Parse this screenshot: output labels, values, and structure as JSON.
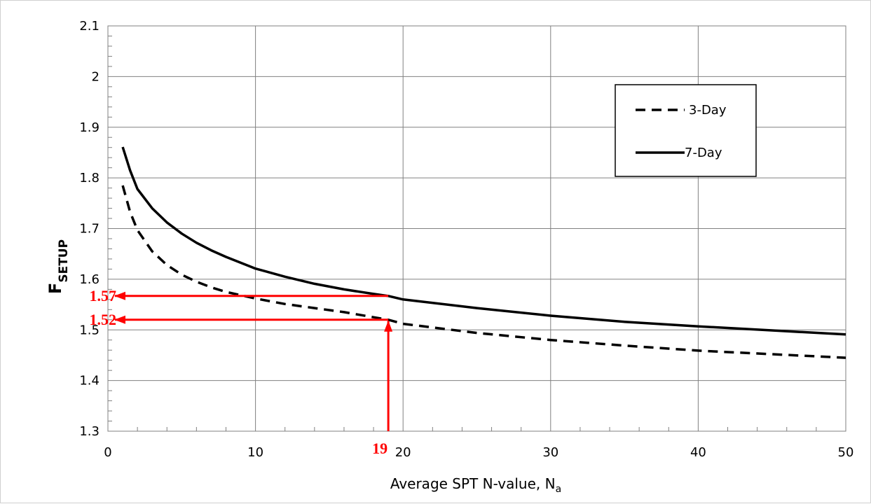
{
  "chart_data": {
    "type": "line",
    "title": "",
    "xlabel": {
      "main": "Average SPT N-value, N",
      "sub": "a"
    },
    "ylabel": {
      "main": "F",
      "sub": "SETUP"
    },
    "xlim": [
      0,
      50
    ],
    "ylim": [
      1.3,
      2.1
    ],
    "x_ticks": [
      "0",
      "10",
      "20",
      "30",
      "40",
      "50"
    ],
    "y_ticks": [
      "1.3",
      "1.4",
      "1.5",
      "1.6",
      "1.7",
      "1.8",
      "1.9",
      "2",
      "2.1"
    ],
    "grid": true,
    "legend": {
      "placement": "top-right"
    },
    "series": [
      {
        "name": "3-Day",
        "style": "dashed",
        "color": "#000000",
        "x": [
          1,
          1.5,
          2,
          3,
          4,
          5,
          6,
          7,
          8,
          10,
          12,
          14,
          16,
          18,
          19,
          20,
          25,
          30,
          35,
          40,
          45,
          50
        ],
        "y": [
          1.785,
          1.733,
          1.697,
          1.655,
          1.628,
          1.609,
          1.595,
          1.584,
          1.575,
          1.562,
          1.551,
          1.543,
          1.535,
          1.525,
          1.52,
          1.512,
          1.494,
          1.48,
          1.469,
          1.459,
          1.452,
          1.445
        ]
      },
      {
        "name": "7-Day",
        "style": "solid",
        "color": "#000000",
        "x": [
          1,
          1.5,
          2,
          3,
          4,
          5,
          6,
          7,
          8,
          10,
          12,
          14,
          16,
          18,
          19,
          20,
          25,
          30,
          35,
          40,
          45,
          50
        ],
        "y": [
          1.861,
          1.815,
          1.778,
          1.74,
          1.712,
          1.69,
          1.672,
          1.657,
          1.644,
          1.621,
          1.605,
          1.591,
          1.58,
          1.571,
          1.567,
          1.56,
          1.543,
          1.528,
          1.516,
          1.507,
          1.499,
          1.491
        ]
      }
    ],
    "annotations": {
      "color": "#ff0000",
      "vertical": {
        "x": 19,
        "from_y": 1.3,
        "to_y": 1.52,
        "label": "19"
      },
      "horizontal": [
        {
          "y": 1.567,
          "from_x": 19,
          "to_x": 0,
          "label": "1.57"
        },
        {
          "y": 1.52,
          "from_x": 19,
          "to_x": 0,
          "label": "1.52"
        }
      ]
    }
  }
}
